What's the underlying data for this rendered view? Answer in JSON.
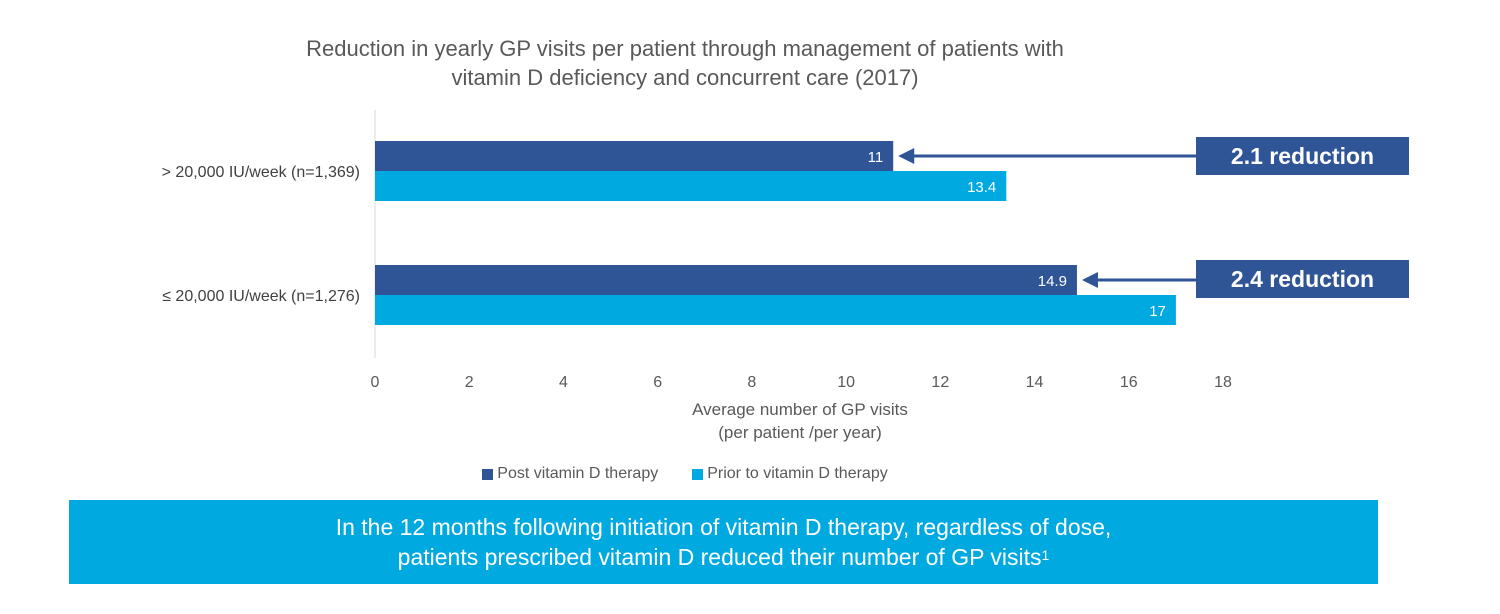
{
  "chart_data": {
    "type": "bar",
    "orientation": "horizontal",
    "title_lines": [
      "Reduction in yearly GP visits per patient through management of patients with",
      "vitamin D deficiency and concurrent care (2017)"
    ],
    "categories": [
      "> 20,000 IU/week (n=1,369)",
      "≤ 20,000 IU/week (n=1,276)"
    ],
    "series": [
      {
        "name": "Post vitamin D therapy",
        "values": [
          11,
          14.9
        ],
        "labels": [
          "11",
          "14.9"
        ],
        "color": "#2f5597"
      },
      {
        "name": "Prior to vitamin D therapy",
        "values": [
          13.4,
          17
        ],
        "labels": [
          "13.4",
          "17"
        ],
        "color": "#00a9e0"
      }
    ],
    "xlabel_lines": [
      "Average number of GP visits",
      "(per patient /per year)"
    ],
    "xlim": [
      0,
      18
    ],
    "xticks": [
      0,
      2,
      4,
      6,
      8,
      10,
      12,
      14,
      16,
      18
    ],
    "grid": false,
    "legend_position": "bottom",
    "annotations": [
      "2.1 reduction",
      "2.4 reduction"
    ]
  },
  "banner": {
    "line1": "In the 12 months following initiation of vitamin D therapy, regardless of dose,",
    "line2": "patients prescribed vitamin D reduced their number of GP visits",
    "superscript": "1"
  }
}
